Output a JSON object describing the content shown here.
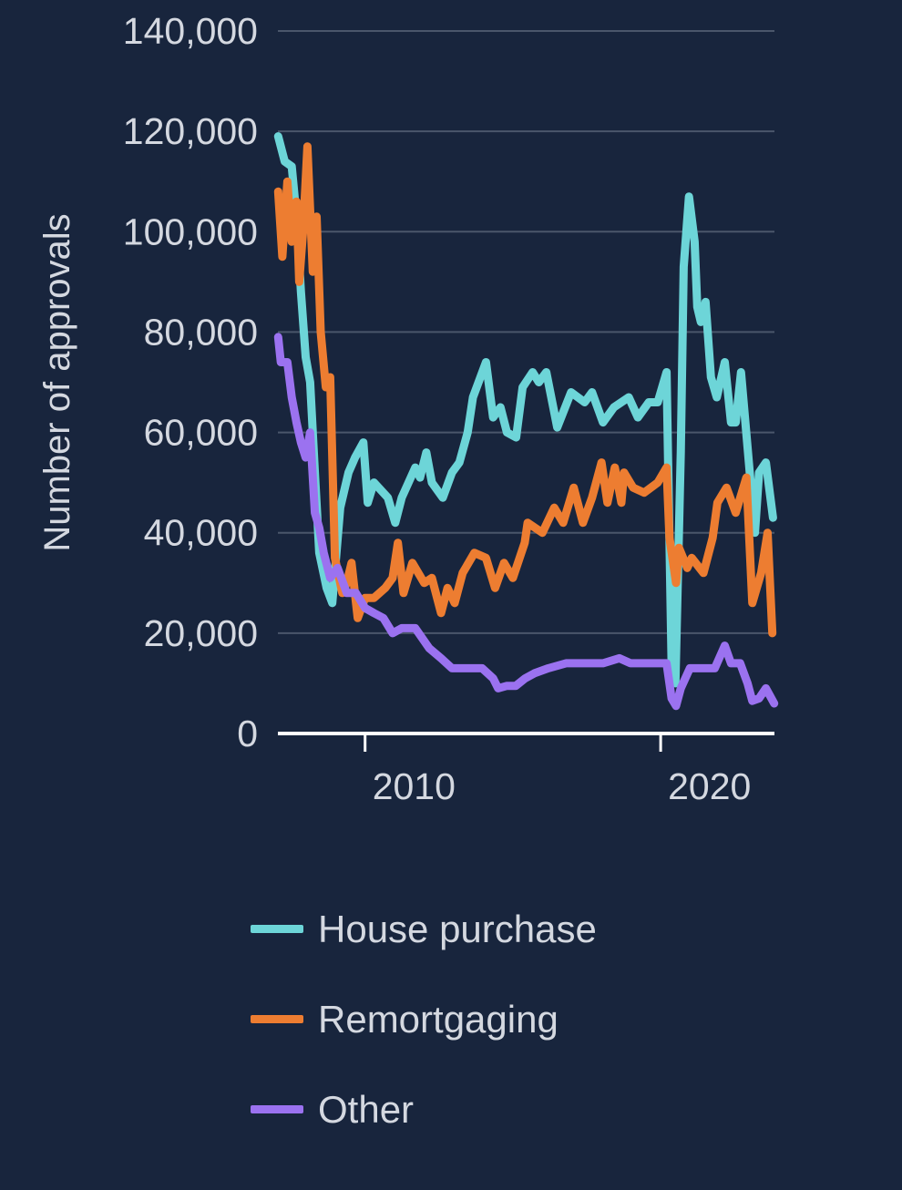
{
  "chart_data": {
    "type": "line",
    "title": "",
    "xlabel": "",
    "ylabel": "Number of approvals",
    "xlim": [
      2007.05,
      2023.85
    ],
    "ylim": [
      0,
      140000
    ],
    "x_ticks": [
      2010,
      2020
    ],
    "x_tick_labels": [
      "2010",
      "2020"
    ],
    "y_ticks": [
      0,
      20000,
      40000,
      60000,
      80000,
      100000,
      120000,
      140000
    ],
    "y_tick_labels": [
      "0",
      "20,000",
      "40,000",
      "60,000",
      "80,000",
      "100,000",
      "120,000",
      "140,000"
    ],
    "grid": "horizontal",
    "legend_position": "bottom",
    "series": [
      {
        "name": "House purchase",
        "color": "#6dd5d8",
        "points": [
          [
            2007.06,
            119000
          ],
          [
            2007.28,
            114000
          ],
          [
            2007.52,
            113000
          ],
          [
            2007.68,
            103000
          ],
          [
            2007.83,
            88000
          ],
          [
            2007.99,
            75000
          ],
          [
            2008.14,
            70000
          ],
          [
            2008.3,
            52000
          ],
          [
            2008.45,
            36000
          ],
          [
            2008.7,
            29000
          ],
          [
            2008.89,
            26000
          ],
          [
            2009.16,
            45000
          ],
          [
            2009.44,
            52000
          ],
          [
            2009.66,
            55000
          ],
          [
            2009.94,
            58000
          ],
          [
            2010.09,
            46000
          ],
          [
            2010.3,
            50000
          ],
          [
            2010.77,
            47000
          ],
          [
            2011.02,
            42000
          ],
          [
            2011.24,
            47000
          ],
          [
            2011.7,
            53000
          ],
          [
            2011.86,
            51000
          ],
          [
            2012.07,
            56000
          ],
          [
            2012.26,
            50000
          ],
          [
            2012.63,
            47000
          ],
          [
            2012.94,
            52000
          ],
          [
            2013.19,
            54000
          ],
          [
            2013.47,
            60000
          ],
          [
            2013.65,
            67000
          ],
          [
            2014.09,
            74000
          ],
          [
            2014.33,
            63000
          ],
          [
            2014.58,
            65000
          ],
          [
            2014.8,
            60000
          ],
          [
            2015.11,
            59000
          ],
          [
            2015.33,
            69000
          ],
          [
            2015.67,
            72000
          ],
          [
            2015.88,
            70000
          ],
          [
            2016.13,
            72000
          ],
          [
            2016.5,
            61000
          ],
          [
            2016.97,
            68000
          ],
          [
            2017.43,
            66000
          ],
          [
            2017.68,
            68000
          ],
          [
            2018.05,
            62000
          ],
          [
            2018.42,
            65000
          ],
          [
            2018.92,
            67000
          ],
          [
            2019.23,
            63000
          ],
          [
            2019.6,
            66000
          ],
          [
            2019.9,
            66000
          ],
          [
            2020.2,
            72000
          ],
          [
            2020.37,
            14000
          ],
          [
            2020.5,
            10000
          ],
          [
            2020.68,
            56000
          ],
          [
            2020.78,
            93000
          ],
          [
            2020.96,
            107000
          ],
          [
            2021.15,
            98000
          ],
          [
            2021.24,
            85000
          ],
          [
            2021.36,
            82000
          ],
          [
            2021.52,
            86000
          ],
          [
            2021.7,
            71000
          ],
          [
            2021.9,
            67000
          ],
          [
            2022.17,
            74000
          ],
          [
            2022.38,
            62000
          ],
          [
            2022.54,
            62000
          ],
          [
            2022.72,
            72000
          ],
          [
            2022.94,
            57000
          ],
          [
            2023.19,
            40000
          ],
          [
            2023.33,
            52000
          ],
          [
            2023.56,
            54000
          ],
          [
            2023.8,
            43000
          ]
        ]
      },
      {
        "name": "Remortgaging",
        "color": "#ed7d31",
        "points": [
          [
            2007.06,
            108000
          ],
          [
            2007.2,
            95000
          ],
          [
            2007.37,
            110000
          ],
          [
            2007.52,
            98000
          ],
          [
            2007.68,
            106000
          ],
          [
            2007.77,
            90000
          ],
          [
            2007.9,
            100000
          ],
          [
            2008.05,
            117000
          ],
          [
            2008.23,
            92000
          ],
          [
            2008.36,
            103000
          ],
          [
            2008.5,
            80000
          ],
          [
            2008.67,
            69000
          ],
          [
            2008.82,
            71000
          ],
          [
            2008.98,
            35000
          ],
          [
            2009.23,
            28000
          ],
          [
            2009.38,
            30000
          ],
          [
            2009.54,
            34000
          ],
          [
            2009.75,
            23000
          ],
          [
            2010.0,
            27000
          ],
          [
            2010.3,
            27000
          ],
          [
            2010.68,
            29000
          ],
          [
            2010.93,
            31000
          ],
          [
            2011.11,
            38000
          ],
          [
            2011.3,
            28000
          ],
          [
            2011.6,
            34000
          ],
          [
            2012.0,
            30000
          ],
          [
            2012.26,
            31000
          ],
          [
            2012.57,
            24000
          ],
          [
            2012.79,
            29000
          ],
          [
            2013.03,
            26000
          ],
          [
            2013.3,
            32000
          ],
          [
            2013.7,
            36000
          ],
          [
            2014.09,
            35000
          ],
          [
            2014.4,
            29000
          ],
          [
            2014.7,
            34000
          ],
          [
            2015.0,
            31000
          ],
          [
            2015.4,
            38000
          ],
          [
            2015.5,
            42000
          ],
          [
            2016.0,
            40000
          ],
          [
            2016.4,
            45000
          ],
          [
            2016.7,
            42000
          ],
          [
            2017.06,
            49000
          ],
          [
            2017.37,
            42000
          ],
          [
            2017.68,
            47000
          ],
          [
            2018.0,
            54000
          ],
          [
            2018.2,
            46000
          ],
          [
            2018.45,
            53000
          ],
          [
            2018.67,
            46000
          ],
          [
            2018.76,
            52000
          ],
          [
            2019.07,
            49000
          ],
          [
            2019.44,
            48000
          ],
          [
            2019.9,
            50000
          ],
          [
            2020.2,
            53000
          ],
          [
            2020.3,
            39000
          ],
          [
            2020.52,
            30000
          ],
          [
            2020.62,
            37000
          ],
          [
            2020.9,
            33000
          ],
          [
            2021.05,
            35000
          ],
          [
            2021.45,
            32000
          ],
          [
            2021.76,
            39000
          ],
          [
            2021.92,
            46000
          ],
          [
            2022.23,
            49000
          ],
          [
            2022.54,
            44000
          ],
          [
            2022.9,
            51000
          ],
          [
            2023.1,
            26000
          ],
          [
            2023.4,
            32000
          ],
          [
            2023.62,
            40000
          ],
          [
            2023.78,
            20000
          ]
        ]
      },
      {
        "name": "Other",
        "color": "#9b72f0",
        "points": [
          [
            2007.06,
            79000
          ],
          [
            2007.15,
            74000
          ],
          [
            2007.37,
            74000
          ],
          [
            2007.52,
            67000
          ],
          [
            2007.68,
            62000
          ],
          [
            2007.83,
            58000
          ],
          [
            2007.99,
            55000
          ],
          [
            2008.14,
            60000
          ],
          [
            2008.3,
            44000
          ],
          [
            2008.45,
            41000
          ],
          [
            2008.6,
            36000
          ],
          [
            2008.82,
            31000
          ],
          [
            2009.07,
            33000
          ],
          [
            2009.38,
            28000
          ],
          [
            2009.69,
            28000
          ],
          [
            2010.0,
            25000
          ],
          [
            2010.3,
            24000
          ],
          [
            2010.62,
            23000
          ],
          [
            2010.93,
            20000
          ],
          [
            2011.24,
            21000
          ],
          [
            2011.7,
            21000
          ],
          [
            2012.17,
            17000
          ],
          [
            2012.57,
            15000
          ],
          [
            2012.94,
            13000
          ],
          [
            2013.4,
            13000
          ],
          [
            2013.96,
            13000
          ],
          [
            2014.33,
            11000
          ],
          [
            2014.5,
            9000
          ],
          [
            2014.8,
            9500
          ],
          [
            2015.1,
            9500
          ],
          [
            2015.42,
            11000
          ],
          [
            2015.73,
            12000
          ],
          [
            2016.2,
            13000
          ],
          [
            2016.8,
            14000
          ],
          [
            2017.43,
            14000
          ],
          [
            2018.05,
            14000
          ],
          [
            2018.6,
            15000
          ],
          [
            2018.98,
            14000
          ],
          [
            2019.6,
            14000
          ],
          [
            2020.2,
            14000
          ],
          [
            2020.37,
            7000
          ],
          [
            2020.52,
            5500
          ],
          [
            2020.68,
            9000
          ],
          [
            2020.99,
            13000
          ],
          [
            2021.45,
            13000
          ],
          [
            2021.83,
            13000
          ],
          [
            2022.17,
            17500
          ],
          [
            2022.38,
            14000
          ],
          [
            2022.69,
            14000
          ],
          [
            2022.94,
            10000
          ],
          [
            2023.1,
            6500
          ],
          [
            2023.33,
            7000
          ],
          [
            2023.56,
            9000
          ],
          [
            2023.84,
            6000
          ]
        ]
      }
    ]
  },
  "colors": {
    "background": "#18253d",
    "grid": "#4a566b",
    "axis": "#ffffff",
    "text": "#d4d8e0"
  }
}
